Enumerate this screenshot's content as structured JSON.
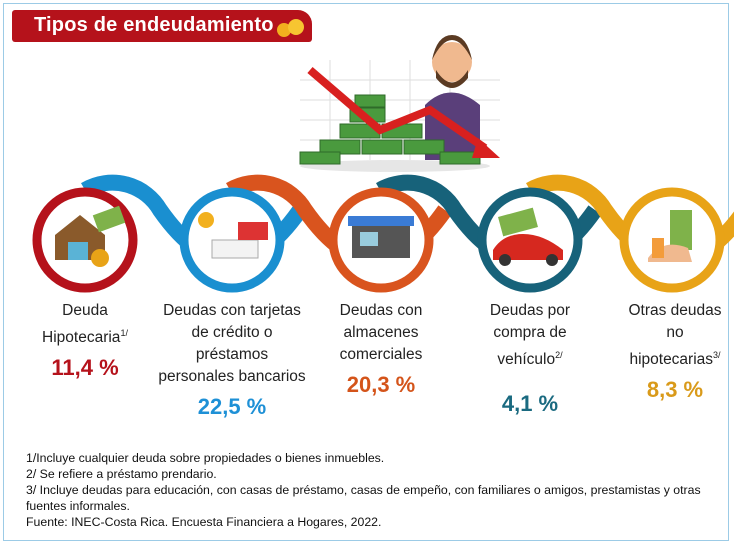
{
  "header": {
    "title": "Tipos de endeudamiento"
  },
  "items": [
    {
      "label_lines": [
        "Deuda",
        "Hipotecaria"
      ],
      "note": "1/",
      "value": "11,4 %"
    },
    {
      "label_lines": [
        "Deudas con tarjetas",
        "de crédito  o",
        "préstamos",
        "personales bancarios"
      ],
      "value": "22,5 %"
    },
    {
      "label_lines": [
        "Deudas con",
        "almacenes",
        "comerciales"
      ],
      "value": "20,3 %"
    },
    {
      "label_lines": [
        "Deudas por",
        "compra de",
        "vehículo"
      ],
      "note": "2/",
      "value": "4,1 %"
    },
    {
      "label_lines": [
        "Otras deudas",
        "no",
        "hipotecarias"
      ],
      "note": "3/",
      "value": "8,3 %"
    }
  ],
  "notes": [
    "1/Incluye cualquier deuda  sobre propiedades o bienes inmuebles.",
    "2/ Se refiere a préstamo prendario.",
    "3/ Incluye deudas para educación, con casas de préstamo, casas de empeño, con familiares o amigos, prestamistas y otras fuentes informales."
  ],
  "source": "Fuente: INEC-Costa Rica. Encuesta Financiera a Hogares, 2022."
}
